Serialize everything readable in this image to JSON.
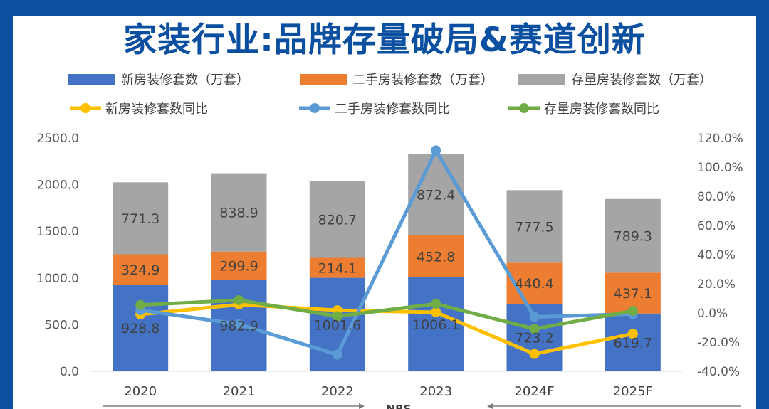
{
  "header": {
    "title": "家装行业:品牌存量破局&赛道创新"
  },
  "colors": {
    "new": "#4472c4",
    "second": "#ed7d31",
    "stock": "#a5a5a5",
    "new_yoy": "#ffc000",
    "second_yoy": "#5b9bd5",
    "stock_yoy": "#70ad47"
  },
  "chart_data": {
    "type": "bar",
    "subtype": "stacked-bar-with-line",
    "categories": [
      "2020",
      "2021",
      "2022",
      "2023",
      "2024F",
      "2025F"
    ],
    "series": [
      {
        "name": "新房装修套数（万套）",
        "kind": "bar",
        "axis": "left",
        "values": [
          928.8,
          982.9,
          1001.6,
          1006.1,
          723.2,
          619.7
        ]
      },
      {
        "name": "二手房装修套数（万套）",
        "kind": "bar",
        "axis": "left",
        "values": [
          324.9,
          299.9,
          214.1,
          452.8,
          440.4,
          437.1
        ]
      },
      {
        "name": "存量房装修套数（万套）",
        "kind": "bar",
        "axis": "left",
        "values": [
          771.3,
          838.9,
          820.7,
          872.4,
          777.5,
          789.3
        ]
      },
      {
        "name": "新房装修套数同比",
        "kind": "line",
        "axis": "right",
        "values": [
          -1.0,
          5.8,
          1.9,
          0.5,
          -28.1,
          -14.3
        ]
      },
      {
        "name": "二手房装修套数同比",
        "kind": "line",
        "axis": "right",
        "values": [
          2.0,
          -7.7,
          -28.6,
          111.5,
          -2.7,
          -0.7
        ]
      },
      {
        "name": "存量房装修套数同比",
        "kind": "line",
        "axis": "right",
        "values": [
          5.5,
          8.8,
          -2.2,
          6.3,
          -10.9,
          1.5
        ]
      }
    ],
    "ylim": [
      0,
      2500
    ],
    "yticks": [
      "0.0",
      "500.0",
      "1000.0",
      "1500.0",
      "2000.0",
      "2500.0"
    ],
    "y2lim": [
      -40,
      120
    ],
    "y2ticks": [
      "-40.0%",
      "-20.0%",
      "0.0%",
      "20.0%",
      "40.0%",
      "60.0%",
      "80.0%",
      "100.0%",
      "120.0%"
    ],
    "source_label": "NBS"
  }
}
